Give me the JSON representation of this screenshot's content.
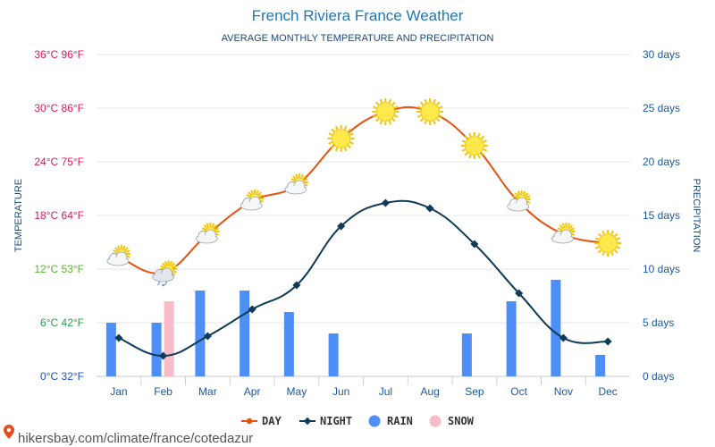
{
  "chart_data": {
    "type": "line",
    "title": "French Riviera France Weather",
    "subtitle": "AVERAGE MONTHLY TEMPERATURE AND PRECIPITATION",
    "ylabel_left": "TEMPERATURE",
    "ylabel_right": "PRECIPITATION",
    "categories": [
      "Jan",
      "Feb",
      "Mar",
      "Apr",
      "May",
      "Jun",
      "Jul",
      "Aug",
      "Sep",
      "Oct",
      "Nov",
      "Dec"
    ],
    "temperature_axis": {
      "ylim": [
        0,
        36
      ],
      "ticks": [
        {
          "value": 0,
          "label": "0°C 32°F",
          "color": "#2050c0"
        },
        {
          "value": 6,
          "label": "6°C 42°F",
          "color": "#2a9d4a"
        },
        {
          "value": 12,
          "label": "12°C 53°F",
          "color": "#5ab52a"
        },
        {
          "value": 18,
          "label": "18°C 64°F",
          "color": "#e0185a"
        },
        {
          "value": 24,
          "label": "24°C 75°F",
          "color": "#e0185a"
        },
        {
          "value": 30,
          "label": "30°C 86°F",
          "color": "#e0185a"
        },
        {
          "value": 36,
          "label": "36°C 96°F",
          "color": "#e0185a"
        }
      ]
    },
    "precipitation_axis": {
      "ylim": [
        0,
        30
      ],
      "ticks": [
        {
          "value": 0,
          "label": "0 days"
        },
        {
          "value": 5,
          "label": "5 days"
        },
        {
          "value": 10,
          "label": "10 days"
        },
        {
          "value": 15,
          "label": "15 days"
        },
        {
          "value": 20,
          "label": "20 days"
        },
        {
          "value": 25,
          "label": "25 days"
        },
        {
          "value": 30,
          "label": "30 days"
        }
      ]
    },
    "series": [
      {
        "name": "DAY",
        "axis": "temperature",
        "color": "#e8510e",
        "values": [
          13.4,
          11.6,
          15.9,
          19.6,
          21.4,
          26.6,
          29.6,
          29.6,
          25.8,
          19.5,
          15.9,
          14.9
        ]
      },
      {
        "name": "NIGHT",
        "axis": "temperature",
        "color": "#0f3b57",
        "values": [
          4.3,
          2.3,
          4.5,
          7.5,
          10.2,
          16.8,
          19.4,
          18.8,
          14.8,
          9.3,
          4.3,
          3.9
        ]
      },
      {
        "name": "RAIN",
        "axis": "precipitation",
        "color": "#4e8ef7",
        "values": [
          5,
          5,
          8,
          8,
          6,
          4,
          0,
          0,
          4,
          7,
          9,
          2
        ]
      },
      {
        "name": "SNOW",
        "axis": "precipitation",
        "color": "#f8bcc8",
        "values": [
          0,
          7,
          0,
          0,
          0,
          0,
          0,
          0,
          0,
          0,
          0,
          0
        ]
      }
    ],
    "day_weather_icons": [
      "partly-cloudy-icon",
      "cloud-rain-snow-icon",
      "partly-cloudy-icon",
      "partly-cloudy-icon",
      "partly-cloudy-icon",
      "sun-icon",
      "sun-icon",
      "sun-icon",
      "sun-icon",
      "partly-cloudy-icon",
      "partly-cloudy-icon",
      "sun-icon"
    ],
    "grid": true,
    "legend_position": "bottom-center"
  },
  "credit": {
    "text": "hikersbay.com/climate/france/cotedazur"
  }
}
